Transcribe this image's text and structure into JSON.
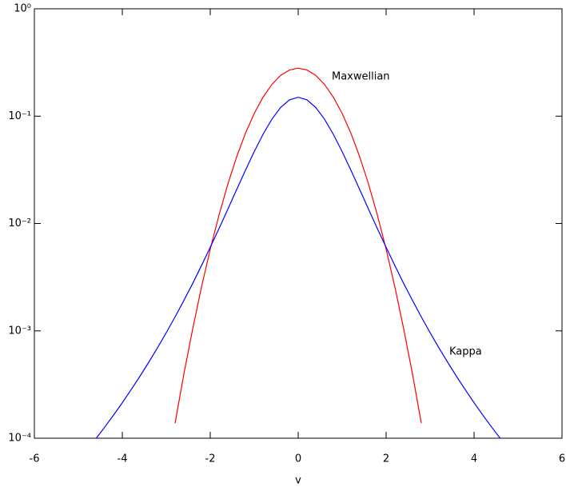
{
  "chart_data": {
    "type": "line",
    "x_label": "v",
    "x": [
      -4.6,
      -4.4,
      -4.2,
      -4.0,
      -3.8,
      -3.6,
      -3.4,
      -3.2,
      -3.0,
      -2.8,
      -2.6,
      -2.4,
      -2.2,
      -2.0,
      -1.8,
      -1.6,
      -1.4,
      -1.2,
      -1.0,
      -0.8,
      -0.6,
      -0.4,
      -0.2,
      0,
      0.2,
      0.4,
      0.6,
      0.8,
      1.0,
      1.2,
      1.4,
      1.6,
      1.8,
      2.0,
      2.2,
      2.4,
      2.6,
      2.8,
      3.0,
      3.2,
      3.4,
      3.6,
      3.8,
      4.0,
      4.2,
      4.4,
      4.6
    ],
    "series": [
      {
        "name": "Maxwellian",
        "color": "#ff0000",
        "values": [
          null,
          null,
          null,
          null,
          null,
          null,
          null,
          null,
          null,
          0.000138,
          0.000396,
          0.00104,
          0.00255,
          0.00577,
          0.012,
          0.0233,
          0.0417,
          0.0692,
          0.106,
          0.15,
          0.197,
          0.24,
          0.269,
          0.28,
          0.269,
          0.24,
          0.197,
          0.15,
          0.106,
          0.0692,
          0.0417,
          0.0233,
          0.012,
          0.00577,
          0.00255,
          0.00104,
          0.000396,
          0.000138,
          null,
          null,
          null,
          null,
          null,
          null,
          null,
          null,
          null
        ]
      },
      {
        "name": "Kappa",
        "color": "#0000ff",
        "values": [
          9.91e-05,
          0.000127,
          0.000164,
          0.000214,
          0.000283,
          0.000377,
          0.000509,
          0.000695,
          0.000962,
          0.00135,
          0.00192,
          0.00276,
          0.00405,
          0.006,
          0.00898,
          0.0136,
          0.0207,
          0.0313,
          0.0467,
          0.0677,
          0.0935,
          0.1205,
          0.1418,
          0.15,
          0.1418,
          0.1205,
          0.0935,
          0.0677,
          0.0467,
          0.0313,
          0.0207,
          0.0136,
          0.00898,
          0.006,
          0.00405,
          0.00276,
          0.00192,
          0.00135,
          0.000962,
          0.000695,
          0.000509,
          0.000377,
          0.000283,
          0.000214,
          0.000164,
          0.000127,
          9.91e-05
        ]
      }
    ],
    "xlim": [
      -6,
      6
    ],
    "xticks": [
      -6,
      -4,
      -2,
      0,
      2,
      4,
      6
    ],
    "ylim": [
      0.0001,
      1
    ],
    "log_y": true,
    "yticks": [
      {
        "value": 0.0001,
        "label": "10⁻⁴"
      },
      {
        "value": 0.001,
        "label": "10⁻³"
      },
      {
        "value": 0.01,
        "label": "10⁻²"
      },
      {
        "value": 0.1,
        "label": "10⁻¹"
      },
      {
        "value": 1,
        "label": "10⁰"
      }
    ],
    "grid": false
  }
}
